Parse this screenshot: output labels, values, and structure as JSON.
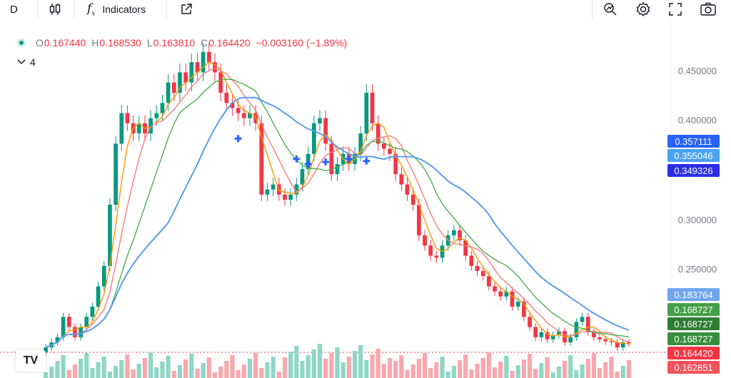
{
  "toolbar": {
    "interval": "D",
    "indicators_label": "Indicators"
  },
  "legend": {
    "open_key": "O",
    "open": "0.167440",
    "high_key": "H",
    "high": "0.168530",
    "low_key": "L",
    "low": "0.163810",
    "close_key": "C",
    "close": "0.164420",
    "change": "−0.003160 (−1.89%)",
    "indicator_count": "4"
  },
  "price_axis": {
    "ticks": [
      "0.450000",
      "0.400000",
      "0.300000",
      "0.250000"
    ]
  },
  "price_tags": [
    {
      "value": "0.357111",
      "color": "#2962ff"
    },
    {
      "value": "0.355046",
      "color": "#4aa3f0"
    },
    {
      "value": "0.349326",
      "color": "#2a2ee6"
    },
    {
      "value": "0.183764",
      "color": "#6fa6ee"
    },
    {
      "value": "0.168727",
      "color": "#43a047"
    },
    {
      "value": "0.168727",
      "color": "#2e7d32"
    },
    {
      "value": "0.168727",
      "color": "#388e3c"
    },
    {
      "value": "0.164420",
      "color": "#f23645"
    },
    {
      "value": "0.162851",
      "color": "#f4515a"
    }
  ],
  "colors": {
    "up": "#089981",
    "down": "#f23645",
    "ma_blue": "#5b9cf0",
    "ma_green": "#4caf50",
    "ma_red": "#f77c80",
    "ma_orange": "#ff9800",
    "marker_blue": "#2962ff"
  },
  "icons": [
    "candles-icon",
    "indicators-fx-icon",
    "popout-icon",
    "lens-icon",
    "gear-icon",
    "fullscreen-icon",
    "camera-icon"
  ],
  "chart_data": {
    "type": "candlestick",
    "y_range": [
      0.13,
      0.48
    ],
    "price_series_close": [
      0.16,
      0.165,
      0.17,
      0.19,
      0.18,
      0.17,
      0.18,
      0.19,
      0.2,
      0.22,
      0.24,
      0.3,
      0.36,
      0.39,
      0.38,
      0.37,
      0.38,
      0.37,
      0.385,
      0.39,
      0.4,
      0.42,
      0.41,
      0.43,
      0.42,
      0.44,
      0.43,
      0.45,
      0.44,
      0.43,
      0.41,
      0.4,
      0.395,
      0.39,
      0.385,
      0.39,
      0.38,
      0.31,
      0.315,
      0.32,
      0.31,
      0.305,
      0.31,
      0.32,
      0.335,
      0.35,
      0.38,
      0.385,
      0.36,
      0.33,
      0.34,
      0.35,
      0.34,
      0.35,
      0.37,
      0.41,
      0.38,
      0.36,
      0.355,
      0.35,
      0.33,
      0.32,
      0.31,
      0.3,
      0.27,
      0.26,
      0.25,
      0.248,
      0.26,
      0.27,
      0.275,
      0.265,
      0.25,
      0.24,
      0.235,
      0.23,
      0.22,
      0.215,
      0.21,
      0.215,
      0.2,
      0.205,
      0.19,
      0.18,
      0.17,
      0.175,
      0.168,
      0.172,
      0.176,
      0.165,
      0.17,
      0.185,
      0.19,
      0.175,
      0.17,
      0.168,
      0.166,
      0.165,
      0.16,
      0.165,
      0.164
    ]
  }
}
